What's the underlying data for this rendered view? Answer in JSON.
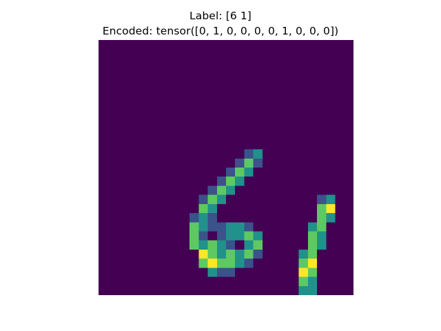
{
  "title": {
    "line1": "Label: [6 1]",
    "line2": "Encoded: tensor([0, 1, 0, 0, 0, 0, 1, 0, 0, 0])"
  },
  "image": {
    "description_type": "grayscale digit image rendered with viridis colormap",
    "colormap_background": "#440154",
    "colormap_low": "#3b528b",
    "colormap_mid": "#21918c",
    "colormap_high": "#5ec962",
    "colormap_peak": "#fde725"
  }
}
